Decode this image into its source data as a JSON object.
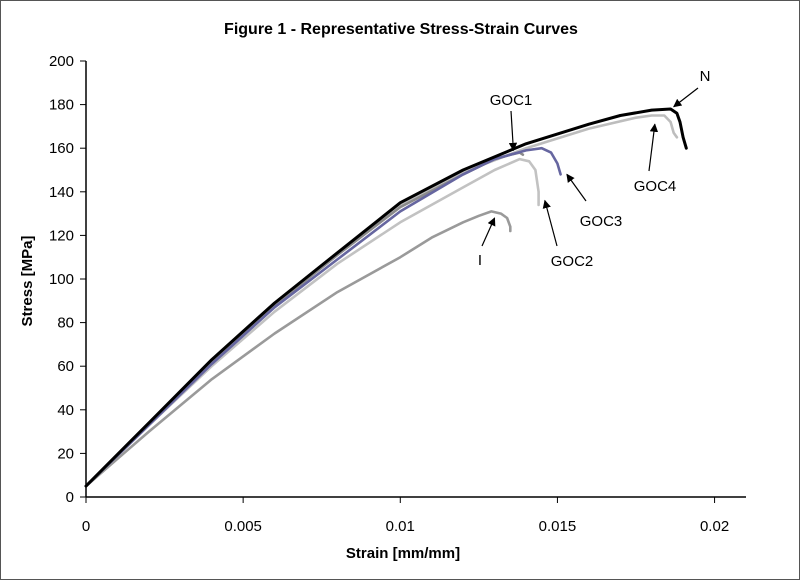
{
  "chart_data": {
    "type": "line",
    "title": "Figure 1 - Representative Stress-Strain Curves",
    "xlabel": "Strain [mm/mm]",
    "ylabel": "Stress [MPa]",
    "xlim": [
      0,
      0.021
    ],
    "ylim": [
      0,
      200
    ],
    "x_ticks": [
      0,
      0.005,
      0.01,
      0.015,
      0.02
    ],
    "x_tick_labels": [
      "0",
      "0.005",
      "0.01",
      "0.015",
      "0.02"
    ],
    "y_ticks": [
      0,
      20,
      40,
      60,
      80,
      100,
      120,
      140,
      160,
      180,
      200
    ],
    "y_tick_labels": [
      "0",
      "20",
      "40",
      "60",
      "80",
      "100",
      "120",
      "140",
      "160",
      "180",
      "200"
    ],
    "grid": false,
    "legend": "none",
    "series": [
      {
        "name": "N",
        "color": "#000000",
        "points": [
          [
            0,
            5
          ],
          [
            0.002,
            34
          ],
          [
            0.004,
            63
          ],
          [
            0.006,
            89
          ],
          [
            0.008,
            112
          ],
          [
            0.01,
            135
          ],
          [
            0.012,
            150
          ],
          [
            0.014,
            162
          ],
          [
            0.016,
            171
          ],
          [
            0.017,
            175
          ],
          [
            0.018,
            177.5
          ],
          [
            0.0186,
            178
          ],
          [
            0.0188,
            176
          ],
          [
            0.0189,
            172
          ],
          [
            0.019,
            165
          ],
          [
            0.0191,
            160
          ]
        ]
      },
      {
        "name": "GOC1",
        "color": "#8a8a8a",
        "points": [
          [
            0,
            5
          ],
          [
            0.002,
            34
          ],
          [
            0.004,
            62
          ],
          [
            0.006,
            88
          ],
          [
            0.008,
            111
          ],
          [
            0.01,
            133
          ],
          [
            0.012,
            148
          ],
          [
            0.013,
            155
          ],
          [
            0.0135,
            157
          ],
          [
            0.0138,
            158
          ],
          [
            0.0139,
            157
          ]
        ]
      },
      {
        "name": "GOC2",
        "color": "#c2c2c2",
        "points": [
          [
            0,
            5
          ],
          [
            0.002,
            33
          ],
          [
            0.004,
            60
          ],
          [
            0.006,
            85
          ],
          [
            0.008,
            107
          ],
          [
            0.01,
            126
          ],
          [
            0.012,
            142
          ],
          [
            0.013,
            150
          ],
          [
            0.0138,
            155
          ],
          [
            0.0141,
            154
          ],
          [
            0.0143,
            150
          ],
          [
            0.0144,
            140
          ],
          [
            0.0144,
            134
          ]
        ]
      },
      {
        "name": "GOC3",
        "color": "#6666a0",
        "points": [
          [
            0,
            5
          ],
          [
            0.002,
            33
          ],
          [
            0.004,
            61
          ],
          [
            0.006,
            87
          ],
          [
            0.008,
            109
          ],
          [
            0.01,
            131
          ],
          [
            0.012,
            148
          ],
          [
            0.013,
            155
          ],
          [
            0.014,
            159
          ],
          [
            0.0145,
            160
          ],
          [
            0.0148,
            158
          ],
          [
            0.015,
            153
          ],
          [
            0.0151,
            148
          ]
        ]
      },
      {
        "name": "GOC4",
        "color": "#bdbdbd",
        "points": [
          [
            0,
            5
          ],
          [
            0.002,
            34
          ],
          [
            0.004,
            63
          ],
          [
            0.006,
            89
          ],
          [
            0.008,
            112
          ],
          [
            0.01,
            134
          ],
          [
            0.012,
            149
          ],
          [
            0.014,
            160
          ],
          [
            0.016,
            169
          ],
          [
            0.0175,
            174
          ],
          [
            0.018,
            175
          ],
          [
            0.0184,
            175
          ],
          [
            0.0186,
            172
          ],
          [
            0.0187,
            167
          ],
          [
            0.0188,
            165
          ]
        ]
      },
      {
        "name": "I",
        "color": "#9a9a9a",
        "points": [
          [
            0,
            5
          ],
          [
            0.002,
            30
          ],
          [
            0.004,
            54
          ],
          [
            0.006,
            75
          ],
          [
            0.008,
            94
          ],
          [
            0.01,
            110
          ],
          [
            0.011,
            119
          ],
          [
            0.012,
            126
          ],
          [
            0.0125,
            129
          ],
          [
            0.0129,
            131
          ],
          [
            0.0132,
            130
          ],
          [
            0.0134,
            128
          ],
          [
            0.0135,
            124
          ],
          [
            0.0135,
            122
          ]
        ]
      }
    ],
    "annotations": [
      {
        "text": "N",
        "target": [
          0.0187,
          179
        ]
      },
      {
        "text": "GOC1",
        "target": [
          0.0136,
          159
        ]
      },
      {
        "text": "GOC2",
        "target": [
          0.0146,
          136
        ]
      },
      {
        "text": "GOC3",
        "target": [
          0.0153,
          148
        ]
      },
      {
        "text": "GOC4",
        "target": [
          0.0181,
          171
        ]
      },
      {
        "text": "I",
        "target": [
          0.013,
          128
        ]
      }
    ]
  }
}
